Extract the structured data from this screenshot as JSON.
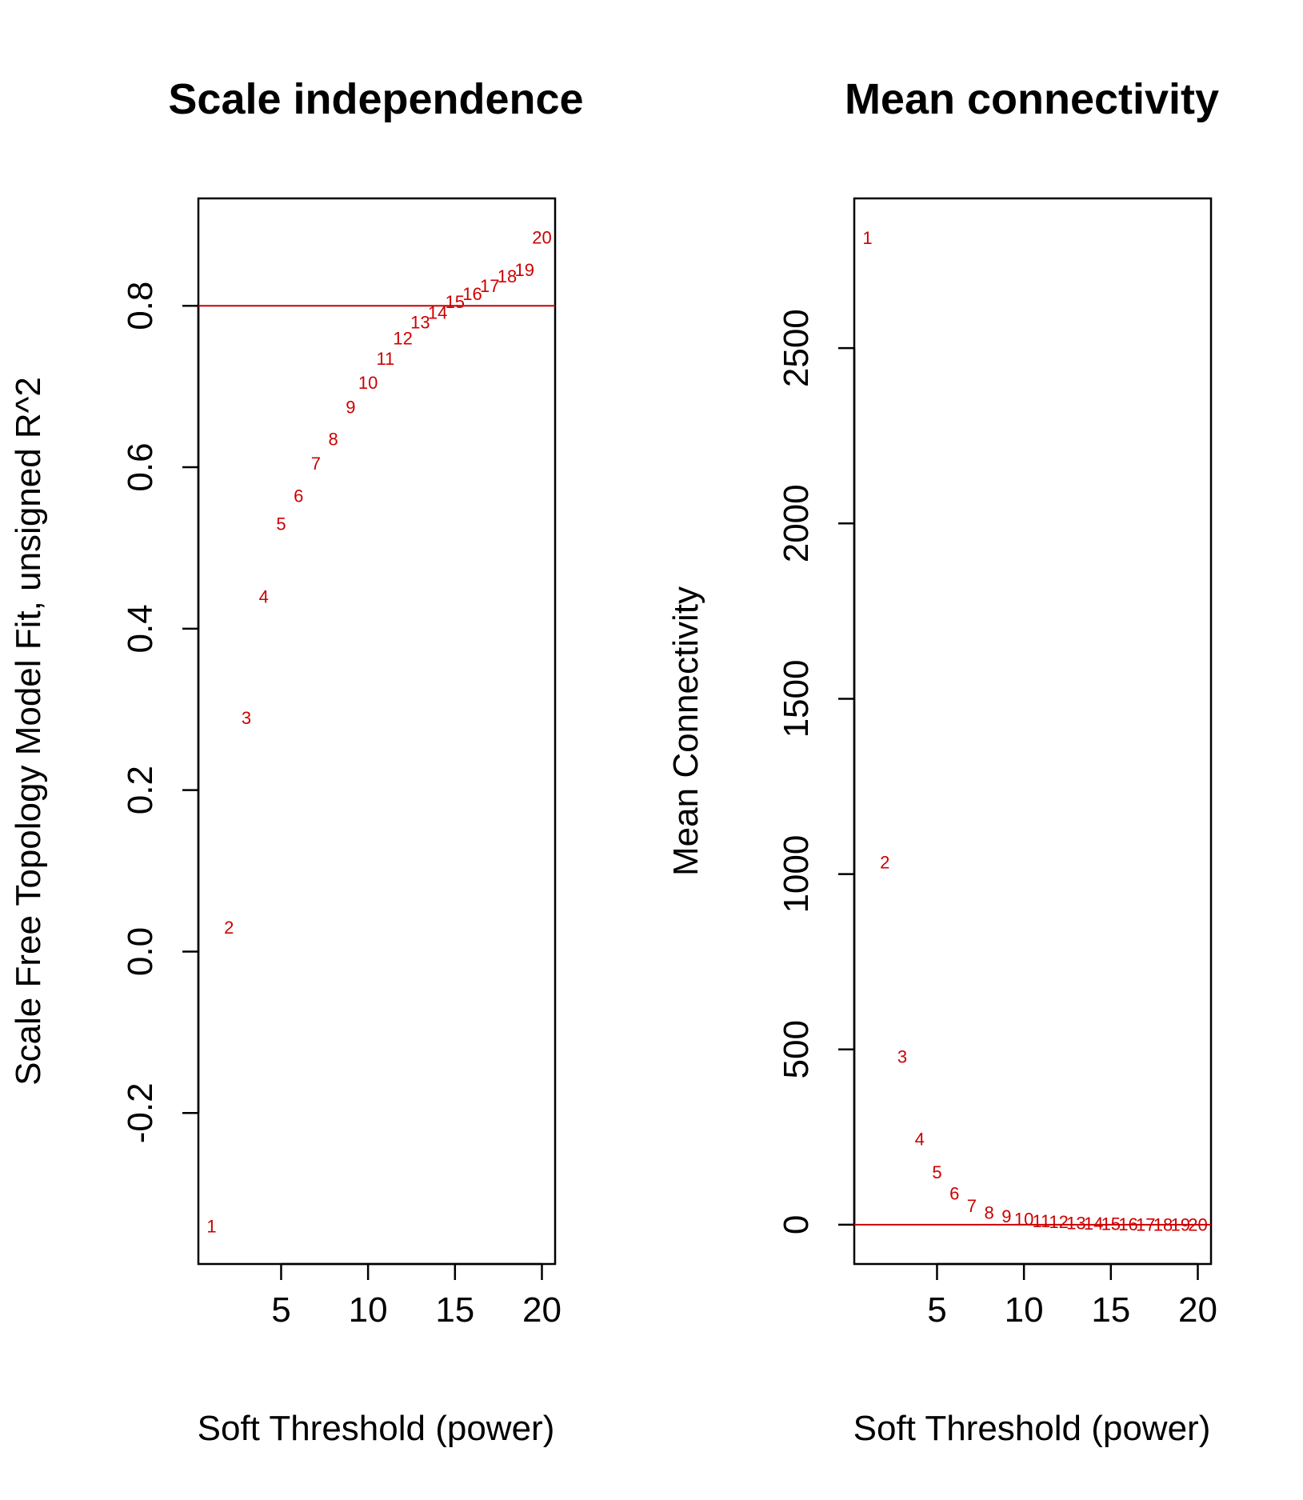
{
  "chart_data": [
    {
      "type": "scatter",
      "title": "Scale independence",
      "xlabel": "Soft Threshold (power)",
      "ylabel": "Scale Free Topology Model Fit, unsigned R^2",
      "x": [
        1,
        2,
        3,
        4,
        5,
        6,
        7,
        8,
        9,
        10,
        11,
        12,
        13,
        14,
        15,
        16,
        17,
        18,
        19,
        20
      ],
      "y": [
        -0.34,
        0.03,
        0.29,
        0.44,
        0.53,
        0.565,
        0.605,
        0.635,
        0.675,
        0.705,
        0.735,
        0.76,
        0.78,
        0.792,
        0.805,
        0.815,
        0.825,
        0.837,
        0.845,
        0.885
      ],
      "point_labels": [
        "1",
        "2",
        "3",
        "4",
        "5",
        "6",
        "7",
        "8",
        "9",
        "10",
        "11",
        "12",
        "13",
        "14",
        "15",
        "16",
        "17",
        "18",
        "19",
        "20"
      ],
      "xlim": [
        0.24,
        20.76
      ],
      "ylim": [
        -0.387,
        0.933
      ],
      "xticks": [
        5,
        10,
        15,
        20
      ],
      "yticks": [
        -0.2,
        0.0,
        0.2,
        0.4,
        0.6,
        0.8
      ],
      "ytick_labels": [
        "-0.2",
        "0.0",
        "0.2",
        "0.4",
        "0.6",
        "0.8"
      ],
      "hline": 0.8,
      "point_color": "#cc0000",
      "line_color": "#cc0000"
    },
    {
      "type": "scatter",
      "title": "Mean connectivity",
      "xlabel": "Soft Threshold (power)",
      "ylabel": "Mean Connectivity",
      "x": [
        1,
        2,
        3,
        4,
        5,
        6,
        7,
        8,
        9,
        10,
        11,
        12,
        13,
        14,
        15,
        16,
        17,
        18,
        19,
        20
      ],
      "y": [
        2815,
        1035,
        480,
        245,
        150,
        90,
        55,
        35,
        25,
        17,
        11,
        9,
        6,
        4,
        3,
        2,
        1,
        1,
        1,
        0.5
      ],
      "point_labels": [
        "1",
        "2",
        "3",
        "4",
        "5",
        "6",
        "7",
        "8",
        "9",
        "10",
        "11",
        "12",
        "13",
        "14",
        "15",
        "16",
        "17",
        "18",
        "19",
        "20"
      ],
      "xlim": [
        0.24,
        20.76
      ],
      "ylim": [
        -112,
        2927
      ],
      "xticks": [
        5,
        10,
        15,
        20
      ],
      "yticks": [
        0,
        500,
        1000,
        1500,
        2000,
        2500
      ],
      "ytick_labels": [
        "0",
        "500",
        "1000",
        "1500",
        "2000",
        "2500"
      ],
      "hline": 0,
      "point_color": "#cc0000",
      "line_color": "#cc0000"
    }
  ]
}
